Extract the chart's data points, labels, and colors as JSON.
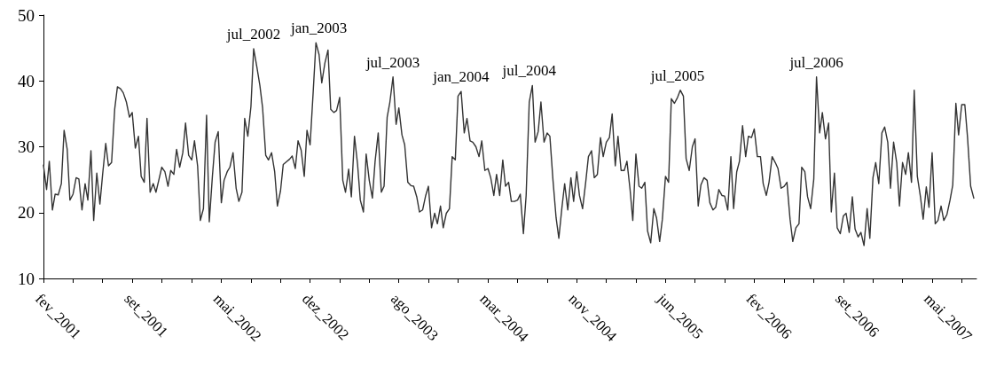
{
  "chart_data": {
    "type": "line",
    "x": [
      "2001-02-01",
      "2001-02-09",
      "2001-02-16",
      "2001-02-24",
      "2001-03-03",
      "2001-03-11",
      "2001-03-19",
      "2001-03-26",
      "2001-04-03",
      "2001-04-10",
      "2001-04-18",
      "2001-04-26",
      "2001-05-03",
      "2001-05-11",
      "2001-05-19",
      "2001-05-26",
      "2001-06-03",
      "2001-06-10",
      "2001-06-18",
      "2001-06-26",
      "2001-07-03",
      "2001-07-11",
      "2001-07-18",
      "2001-07-26",
      "2001-08-03",
      "2001-08-10",
      "2001-08-18",
      "2001-08-25",
      "2001-09-02",
      "2001-09-10",
      "2001-09-17",
      "2001-09-25",
      "2001-10-03",
      "2001-10-10",
      "2001-10-18",
      "2001-10-25",
      "2001-11-02",
      "2001-11-10",
      "2001-11-17",
      "2001-11-25",
      "2001-12-02",
      "2001-12-10",
      "2001-12-18",
      "2001-12-25",
      "2002-01-02",
      "2002-01-09",
      "2002-01-17",
      "2002-01-25",
      "2002-02-01",
      "2002-02-09",
      "2002-02-17",
      "2002-02-24",
      "2002-03-04",
      "2002-03-11",
      "2002-03-19",
      "2002-03-27",
      "2002-04-03",
      "2002-04-11",
      "2002-04-18",
      "2002-04-26",
      "2002-05-04",
      "2002-05-11",
      "2002-05-19",
      "2002-05-26",
      "2002-06-03",
      "2002-06-11",
      "2002-06-18",
      "2002-06-26",
      "2002-07-03",
      "2002-07-11",
      "2002-07-19",
      "2002-07-26",
      "2002-08-03",
      "2002-08-11",
      "2002-08-18",
      "2002-08-26",
      "2002-09-02",
      "2002-09-10",
      "2002-09-18",
      "2002-09-25",
      "2002-10-03",
      "2002-10-10",
      "2002-10-18",
      "2002-10-26",
      "2002-11-02",
      "2002-11-10",
      "2002-11-17",
      "2002-11-25",
      "2002-12-03",
      "2002-12-10",
      "2002-12-18",
      "2002-12-26",
      "2003-01-02",
      "2003-01-10",
      "2003-01-17",
      "2003-01-25",
      "2003-02-02",
      "2003-02-09",
      "2003-02-17",
      "2003-02-24",
      "2003-03-04",
      "2003-03-12",
      "2003-03-19",
      "2003-03-27",
      "2003-04-03",
      "2003-04-11",
      "2003-04-19",
      "2003-04-26",
      "2003-05-04",
      "2003-05-11",
      "2003-05-19",
      "2003-05-27",
      "2003-06-03",
      "2003-06-11",
      "2003-06-19",
      "2003-06-26",
      "2003-07-04",
      "2003-07-11",
      "2003-07-19",
      "2003-07-27",
      "2003-08-03",
      "2003-08-11",
      "2003-08-18",
      "2003-08-26",
      "2003-09-03",
      "2003-09-10",
      "2003-09-18",
      "2003-09-25",
      "2003-10-03",
      "2003-10-11",
      "2003-10-18",
      "2003-10-26",
      "2003-11-03",
      "2003-11-10",
      "2003-11-18",
      "2003-11-25",
      "2003-12-03",
      "2003-12-11",
      "2003-12-18",
      "2003-12-26",
      "2004-01-02",
      "2004-01-10",
      "2004-01-18",
      "2004-01-25",
      "2004-02-02",
      "2004-02-09",
      "2004-02-17",
      "2004-02-25",
      "2004-03-03",
      "2004-03-11",
      "2004-03-19",
      "2004-03-26",
      "2004-04-03",
      "2004-04-10",
      "2004-04-18",
      "2004-04-26",
      "2004-05-03",
      "2004-05-11",
      "2004-05-18",
      "2004-05-26",
      "2004-06-03",
      "2004-06-10",
      "2004-06-18",
      "2004-06-25",
      "2004-07-03",
      "2004-07-11",
      "2004-07-18",
      "2004-07-26",
      "2004-08-02",
      "2004-08-10",
      "2004-08-18",
      "2004-08-25",
      "2004-09-02",
      "2004-09-10",
      "2004-09-17",
      "2004-09-25",
      "2004-10-02",
      "2004-10-10",
      "2004-10-18",
      "2004-10-25",
      "2004-11-02",
      "2004-11-09",
      "2004-11-17",
      "2004-11-25",
      "2004-12-02",
      "2004-12-10",
      "2004-12-17",
      "2004-12-25",
      "2005-01-02",
      "2005-01-09",
      "2005-01-17",
      "2005-01-25",
      "2005-02-01",
      "2005-02-09",
      "2005-02-16",
      "2005-02-24",
      "2005-03-04",
      "2005-03-11",
      "2005-03-19",
      "2005-03-26",
      "2005-04-03",
      "2005-04-11",
      "2005-04-18",
      "2005-04-26",
      "2005-05-03",
      "2005-05-11",
      "2005-05-19",
      "2005-05-26",
      "2005-06-03",
      "2005-06-10",
      "2005-06-18",
      "2005-06-26",
      "2005-07-03",
      "2005-07-11",
      "2005-07-19",
      "2005-07-26",
      "2005-08-03",
      "2005-08-10",
      "2005-08-18",
      "2005-08-26",
      "2005-09-02",
      "2005-09-10",
      "2005-09-17",
      "2005-09-25",
      "2005-10-03",
      "2005-10-10",
      "2005-10-18",
      "2005-10-25",
      "2005-11-02",
      "2005-11-10",
      "2005-11-17",
      "2005-11-25",
      "2005-12-03",
      "2005-12-10",
      "2005-12-18",
      "2005-12-25",
      "2006-01-02",
      "2006-01-10",
      "2006-01-17",
      "2006-01-25",
      "2006-02-01",
      "2006-02-09",
      "2006-02-17",
      "2006-02-24",
      "2006-03-04",
      "2006-03-11",
      "2006-03-19",
      "2006-03-27",
      "2006-04-03",
      "2006-04-11",
      "2006-04-19",
      "2006-04-26",
      "2006-05-04",
      "2006-05-11",
      "2006-05-19",
      "2006-05-27",
      "2006-06-03",
      "2006-06-11",
      "2006-06-18",
      "2006-06-26",
      "2006-07-04",
      "2006-07-11",
      "2006-07-19",
      "2006-07-26",
      "2006-08-03",
      "2006-08-11",
      "2006-08-18",
      "2006-08-26",
      "2006-09-02",
      "2006-09-10",
      "2006-09-18",
      "2006-09-25",
      "2006-10-03",
      "2006-10-11",
      "2006-10-18",
      "2006-10-26",
      "2006-11-02",
      "2006-11-10",
      "2006-11-18",
      "2006-11-25",
      "2006-12-03",
      "2006-12-10",
      "2006-12-18",
      "2006-12-26",
      "2007-01-02",
      "2007-01-10",
      "2007-01-17",
      "2007-01-25",
      "2007-02-02",
      "2007-02-09",
      "2007-02-17",
      "2007-02-25",
      "2007-03-04",
      "2007-03-12",
      "2007-03-19",
      "2007-03-27",
      "2007-04-04",
      "2007-04-11",
      "2007-04-19",
      "2007-04-26",
      "2007-05-04",
      "2007-05-12",
      "2007-05-19",
      "2007-05-27",
      "2007-06-03",
      "2007-06-11",
      "2007-06-19",
      "2007-06-26",
      "2007-07-04",
      "2007-07-11",
      "2007-07-19",
      "2007-07-27",
      "2007-08-03",
      "2007-08-11",
      "2007-08-19"
    ],
    "series": [
      {
        "color": "#333333",
        "values": [
          27.2,
          23.5,
          27.8,
          20.4,
          22.8,
          22.7,
          24.4,
          32.5,
          29.6,
          21.9,
          22.8,
          25.3,
          25.1,
          20.4,
          24.4,
          21.9,
          29.4,
          18.8,
          26.0,
          21.3,
          25.8,
          30.5,
          27.1,
          27.6,
          35.7,
          39.1,
          38.8,
          38.2,
          36.8,
          34.5,
          35.2,
          29.8,
          31.6,
          25.5,
          24.6,
          34.3,
          23.1,
          24.4,
          23.1,
          25.1,
          26.9,
          26.2,
          24.0,
          26.4,
          25.8,
          29.6,
          26.9,
          29.1,
          33.6,
          28.7,
          28.0,
          30.9,
          27.1,
          18.8,
          20.6,
          34.8,
          18.6,
          25.5,
          30.7,
          32.3,
          21.5,
          24.9,
          26.2,
          26.9,
          29.1,
          23.7,
          21.7,
          23.1,
          34.3,
          31.6,
          36.1,
          44.9,
          42.2,
          39.3,
          35.9,
          28.7,
          28.0,
          29.1,
          26.2,
          21.0,
          23.3,
          27.3,
          27.7,
          28.1,
          28.6,
          26.7,
          30.9,
          29.5,
          25.5,
          32.5,
          30.3,
          38.4,
          45.8,
          44.0,
          39.7,
          42.7,
          44.7,
          35.7,
          35.2,
          35.5,
          37.5,
          24.9,
          23.1,
          26.6,
          22.4,
          31.6,
          27.3,
          21.9,
          20.1,
          28.9,
          24.9,
          22.2,
          27.8,
          32.1,
          23.1,
          24.0,
          34.5,
          36.8,
          40.6,
          33.4,
          35.9,
          31.8,
          30.3,
          24.6,
          24.1,
          24.0,
          22.4,
          20.1,
          20.4,
          22.6,
          24.0,
          17.7,
          19.9,
          18.3,
          21.0,
          17.7,
          19.9,
          20.6,
          28.5,
          28.0,
          37.7,
          38.4,
          32.1,
          34.3,
          30.9,
          30.7,
          30.0,
          28.5,
          30.9,
          26.4,
          26.7,
          25.3,
          22.6,
          25.8,
          22.6,
          28.0,
          24.0,
          24.6,
          21.7,
          21.7,
          21.9,
          22.8,
          16.8,
          22.6,
          36.8,
          39.3,
          30.7,
          32.3,
          36.8,
          30.7,
          32.1,
          31.6,
          24.9,
          19.2,
          16.1,
          20.8,
          24.4,
          20.4,
          25.3,
          21.7,
          26.2,
          22.6,
          20.6,
          24.6,
          28.5,
          29.4,
          25.3,
          25.8,
          31.4,
          28.5,
          30.7,
          31.4,
          35.0,
          27.1,
          31.6,
          26.4,
          26.4,
          27.8,
          23.5,
          18.8,
          28.9,
          24.0,
          23.7,
          24.6,
          17.2,
          15.4,
          20.6,
          19.2,
          15.6,
          19.0,
          25.5,
          24.6,
          37.3,
          36.6,
          37.5,
          38.6,
          37.7,
          28.2,
          26.4,
          30.0,
          31.2,
          21.0,
          24.2,
          25.3,
          24.9,
          21.5,
          20.4,
          20.8,
          23.5,
          22.6,
          22.5,
          20.4,
          28.5,
          20.6,
          26.2,
          27.8,
          33.2,
          28.5,
          31.6,
          31.4,
          32.7,
          28.5,
          28.5,
          24.4,
          22.6,
          24.6,
          28.5,
          27.6,
          26.7,
          23.7,
          24.0,
          24.6,
          19.0,
          15.6,
          17.7,
          18.3,
          26.9,
          26.2,
          22.4,
          20.6,
          25.1,
          40.6,
          32.1,
          35.2,
          31.2,
          33.6,
          20.1,
          26.0,
          17.7,
          16.8,
          19.5,
          19.9,
          17.0,
          22.4,
          17.5,
          16.3,
          17.0,
          15.0,
          20.6,
          16.1,
          25.3,
          27.6,
          24.4,
          32.1,
          33.0,
          30.7,
          23.7,
          30.7,
          27.6,
          21.0,
          27.6,
          25.8,
          29.1,
          24.6,
          38.6,
          25.5,
          22.4,
          19.0,
          23.9,
          20.8,
          29.1,
          18.3,
          18.8,
          21.0,
          18.8,
          19.7,
          21.9,
          24.2,
          36.6,
          31.8,
          36.4,
          36.4,
          31.4,
          24.0,
          22.2
        ]
      }
    ],
    "xlim": [
      "2001-02-01",
      "2007-08-26"
    ],
    "xticks": [
      {
        "value": "2001-02-01",
        "label": "fev_2001"
      },
      {
        "value": "2001-04-18",
        "label": null
      },
      {
        "value": "2001-07-03",
        "label": null
      },
      {
        "value": "2001-09-17",
        "label": "set_2001"
      },
      {
        "value": "2001-12-02",
        "label": null
      },
      {
        "value": "2002-02-17",
        "label": null
      },
      {
        "value": "2002-05-04",
        "label": "mai_2002"
      },
      {
        "value": "2002-07-19",
        "label": null
      },
      {
        "value": "2002-10-03",
        "label": null
      },
      {
        "value": "2002-12-18",
        "label": "dez_2002"
      },
      {
        "value": "2003-03-04",
        "label": null
      },
      {
        "value": "2003-05-19",
        "label": null
      },
      {
        "value": "2003-08-03",
        "label": "ago_2003"
      },
      {
        "value": "2003-10-18",
        "label": null
      },
      {
        "value": "2004-01-02",
        "label": null
      },
      {
        "value": "2004-03-19",
        "label": "mar_2004"
      },
      {
        "value": "2004-06-03",
        "label": null
      },
      {
        "value": "2004-08-18",
        "label": null
      },
      {
        "value": "2004-11-02",
        "label": "nov_2004"
      },
      {
        "value": "2005-01-17",
        "label": null
      },
      {
        "value": "2005-04-03",
        "label": null
      },
      {
        "value": "2005-06-18",
        "label": "jun_2005"
      },
      {
        "value": "2005-09-02",
        "label": null
      },
      {
        "value": "2005-11-17",
        "label": null
      },
      {
        "value": "2006-02-01",
        "label": "fev_2006"
      },
      {
        "value": "2006-04-19",
        "label": null
      },
      {
        "value": "2006-07-04",
        "label": null
      },
      {
        "value": "2006-09-18",
        "label": "set_2006"
      },
      {
        "value": "2006-12-03",
        "label": null
      },
      {
        "value": "2007-02-17",
        "label": null
      },
      {
        "value": "2007-05-04",
        "label": "mai_2007"
      },
      {
        "value": "2007-07-19",
        "label": null
      }
    ],
    "ylim": [
      10,
      50
    ],
    "yticks": [
      10,
      20,
      30,
      40,
      50
    ],
    "grid": false,
    "annotations": [
      {
        "text": "jul_2002",
        "x": "2002-07-26",
        "y": 44.9
      },
      {
        "text": "jan_2003",
        "x": "2003-01-10",
        "y": 45.8
      },
      {
        "text": "jul_2003",
        "x": "2003-07-19",
        "y": 40.6
      },
      {
        "text": "jan_2004",
        "x": "2004-01-10",
        "y": 38.4
      },
      {
        "text": "jul_2004",
        "x": "2004-07-03",
        "y": 39.3
      },
      {
        "text": "jul_2005",
        "x": "2005-07-19",
        "y": 38.6
      },
      {
        "text": "jul_2006",
        "x": "2006-07-11",
        "y": 40.6
      }
    ]
  }
}
